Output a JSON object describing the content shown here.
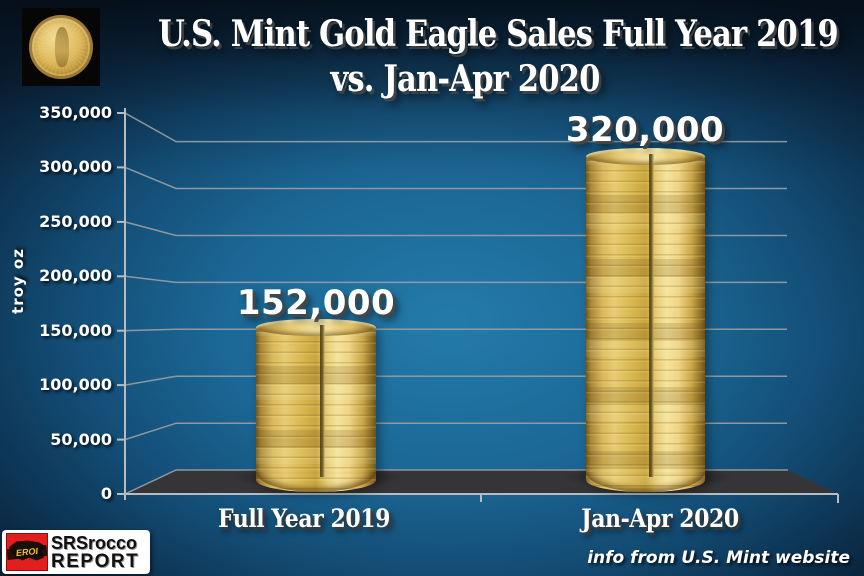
{
  "title": {
    "line1": "U.S. Mint Gold Eagle Sales Full Year 2019",
    "line2": "vs. Jan-Apr 2020"
  },
  "header": {
    "coin_icon": "american-gold-eagle-coin"
  },
  "chart_data": {
    "type": "bar",
    "style": "3d-gold-coin-stack-cylinders",
    "title": "U.S. Mint Gold Eagle Sales Full Year 2019 vs. Jan-Apr 2020",
    "categories": [
      "Full Year 2019",
      "Jan-Apr 2020"
    ],
    "values": [
      152000,
      320000
    ],
    "value_labels": [
      "152,000",
      "320,000"
    ],
    "xlabel": "",
    "ylabel": "troy oz",
    "ylim": [
      0,
      350000
    ],
    "y_tick_step": 50000,
    "y_tick_labels": [
      "350,000",
      "300,000",
      "250,000",
      "200,000",
      "150,000",
      "100,000",
      "50,000",
      "0"
    ],
    "grid": true,
    "legend": false
  },
  "footer": {
    "source_note": "info from U.S. Mint website",
    "brand": {
      "name_top": "SRSrocco",
      "name_bottom": "REPORT",
      "badge": "EROI",
      "badge_icon": "us-map"
    }
  },
  "colors": {
    "background_blue": "#1e72a5",
    "dark_navy": "#0b2030",
    "gold": "#d9b84f",
    "grid_gray": "#9aa0a4",
    "floor_gray": "#353538",
    "brand_red": "#e31e1e",
    "badge_yellow": "#f5c518",
    "text_white": "#ffffff"
  }
}
